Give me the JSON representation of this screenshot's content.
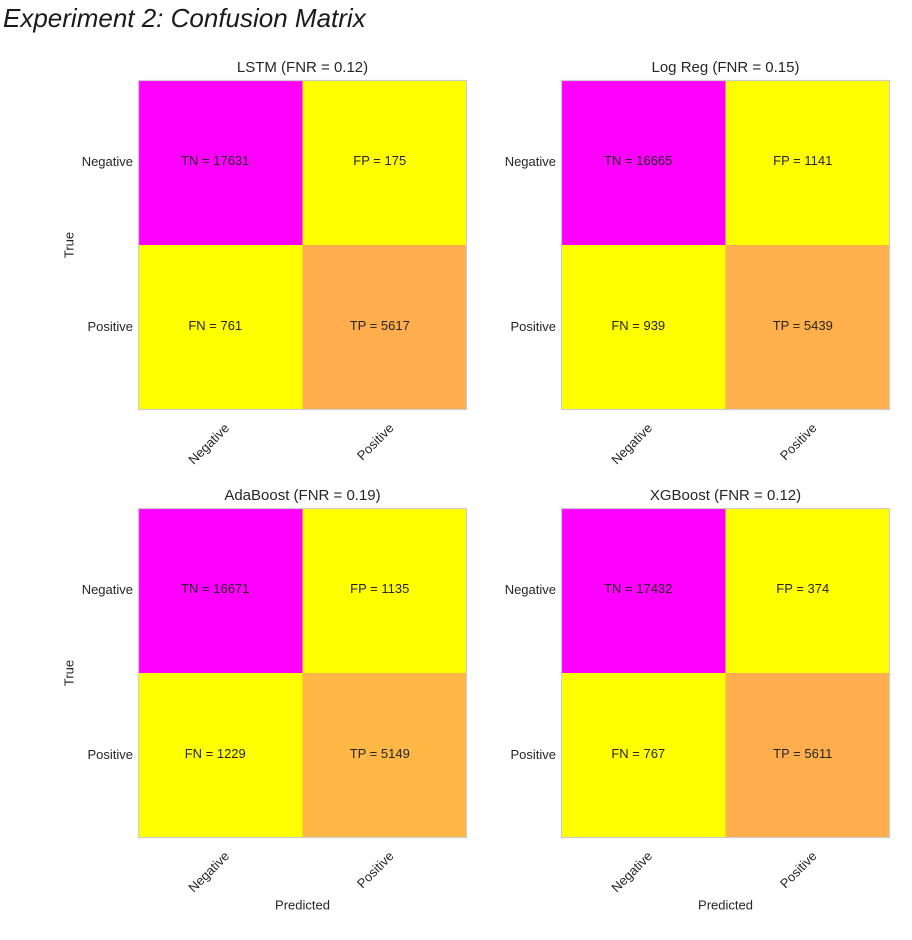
{
  "figure_title": "Experiment 2: Confusion Matrix",
  "chart_data": [
    {
      "type": "heatmap",
      "title": "LSTM (FNR = 0.12)",
      "xlabel": "",
      "ylabel": "True",
      "x_categories": [
        "Negative",
        "Positive"
      ],
      "y_categories": [
        "Negative",
        "Positive"
      ],
      "values": [
        [
          17631,
          175
        ],
        [
          761,
          5617
        ]
      ],
      "cell_labels": [
        [
          "TN = 17631",
          "FP = 175"
        ],
        [
          "FN = 761",
          "TP = 5617"
        ]
      ],
      "cell_colors": [
        [
          "#ff00ff",
          "#ffff00"
        ],
        [
          "#ffff00",
          "#ffad4d"
        ]
      ],
      "grid": false
    },
    {
      "type": "heatmap",
      "title": "Log Reg (FNR = 0.15)",
      "xlabel": "",
      "ylabel": "",
      "x_categories": [
        "Negative",
        "Positive"
      ],
      "y_categories": [
        "Negative",
        "Positive"
      ],
      "values": [
        [
          16665,
          1141
        ],
        [
          939,
          5439
        ]
      ],
      "cell_labels": [
        [
          "TN = 16665",
          "FP = 1141"
        ],
        [
          "FN = 939",
          "TP = 5439"
        ]
      ],
      "cell_colors": [
        [
          "#ff00ff",
          "#ffff00"
        ],
        [
          "#ffff00",
          "#ffaf4b"
        ]
      ],
      "grid": false
    },
    {
      "type": "heatmap",
      "title": "AdaBoost (FNR = 0.19)",
      "xlabel": "Predicted",
      "ylabel": "True",
      "x_categories": [
        "Negative",
        "Positive"
      ],
      "y_categories": [
        "Negative",
        "Positive"
      ],
      "values": [
        [
          16671,
          1135
        ],
        [
          1229,
          5149
        ]
      ],
      "cell_labels": [
        [
          "TN = 16671",
          "FP = 1135"
        ],
        [
          "FN = 1229",
          "TP = 5149"
        ]
      ],
      "cell_colors": [
        [
          "#ff00ff",
          "#ffff00"
        ],
        [
          "#ffff00",
          "#ffb845"
        ]
      ],
      "grid": false
    },
    {
      "type": "heatmap",
      "title": "XGBoost (FNR = 0.12)",
      "xlabel": "Predicted",
      "ylabel": "",
      "x_categories": [
        "Negative",
        "Positive"
      ],
      "y_categories": [
        "Negative",
        "Positive"
      ],
      "values": [
        [
          17432,
          374
        ],
        [
          767,
          5611
        ]
      ],
      "cell_labels": [
        [
          "TN = 17432",
          "FP = 374"
        ],
        [
          "FN = 767",
          "TP = 5611"
        ]
      ],
      "cell_colors": [
        [
          "#ff00ff",
          "#ffff00"
        ],
        [
          "#ffff00",
          "#ffad4d"
        ]
      ],
      "grid": false
    }
  ]
}
